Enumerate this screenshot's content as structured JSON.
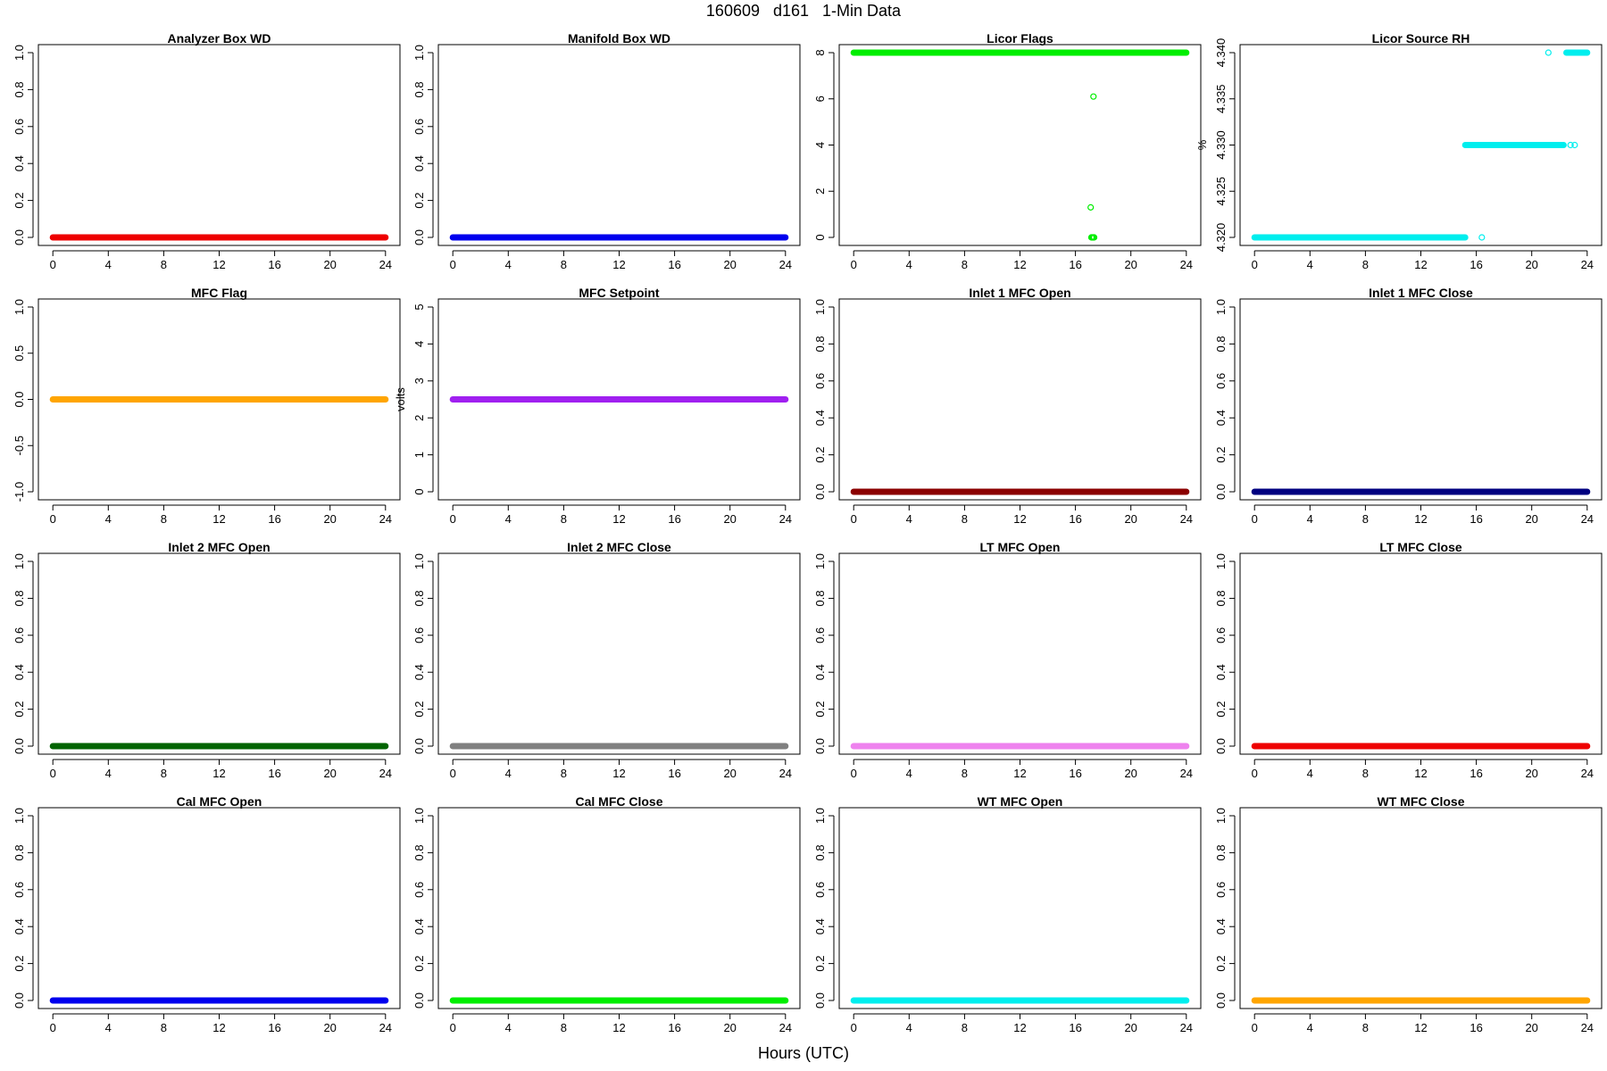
{
  "page": {
    "title": "160609   d161   1-Min Data",
    "xlabel": "Hours (UTC)"
  },
  "chart_data": [
    {
      "type": "scatter",
      "title": "Analyzer Box WD",
      "ylabel": "",
      "color": "#ee0000",
      "xlim": [
        0,
        24
      ],
      "ylim": [
        0,
        1
      ],
      "xticks": [
        0,
        4,
        8,
        12,
        16,
        20,
        24
      ],
      "yticks": [
        "0.0",
        "0.2",
        "0.4",
        "0.6",
        "0.8",
        "1.0"
      ],
      "segments": [
        {
          "x": [
            0,
            24
          ],
          "y": 0
        }
      ],
      "points": []
    },
    {
      "type": "scatter",
      "title": "Manifold Box WD",
      "ylabel": "",
      "color": "#0000ee",
      "xlim": [
        0,
        24
      ],
      "ylim": [
        0,
        1
      ],
      "xticks": [
        0,
        4,
        8,
        12,
        16,
        20,
        24
      ],
      "yticks": [
        "0.0",
        "0.2",
        "0.4",
        "0.6",
        "0.8",
        "1.0"
      ],
      "segments": [
        {
          "x": [
            0,
            24
          ],
          "y": 0
        }
      ],
      "points": []
    },
    {
      "type": "scatter",
      "title": "Licor Flags",
      "ylabel": "",
      "color": "#00ee00",
      "xlim": [
        0,
        24
      ],
      "ylim": [
        0,
        8
      ],
      "xticks": [
        0,
        4,
        8,
        12,
        16,
        20,
        24
      ],
      "yticks": [
        "0",
        "2",
        "4",
        "6",
        "8"
      ],
      "segments": [
        {
          "x": [
            0,
            24
          ],
          "y": 8
        }
      ],
      "points": [
        {
          "x": 17.3,
          "y": 6.1
        },
        {
          "x": 17.1,
          "y": 1.3
        },
        {
          "x": 17.15,
          "y": 0
        },
        {
          "x": 17.2,
          "y": 0
        },
        {
          "x": 17.25,
          "y": 0
        },
        {
          "x": 17.3,
          "y": 0
        },
        {
          "x": 17.35,
          "y": 0
        }
      ]
    },
    {
      "type": "scatter",
      "title": "Licor Source RH",
      "ylabel": "%",
      "color": "#00eeee",
      "xlim": [
        0,
        24
      ],
      "ylim": [
        4.32,
        4.34
      ],
      "xticks": [
        0,
        4,
        8,
        12,
        16,
        20,
        24
      ],
      "yticks": [
        "4.320",
        "4.325",
        "4.330",
        "4.335",
        "4.340"
      ],
      "segments": [
        {
          "x": [
            0,
            15.2
          ],
          "y": 4.32
        },
        {
          "x": [
            15.2,
            22.3
          ],
          "y": 4.33
        },
        {
          "x": [
            22.5,
            24
          ],
          "y": 4.34
        }
      ],
      "points": [
        {
          "x": 16.4,
          "y": 4.32
        },
        {
          "x": 21.2,
          "y": 4.34
        },
        {
          "x": 22.8,
          "y": 4.33
        },
        {
          "x": 23.1,
          "y": 4.33
        }
      ]
    },
    {
      "type": "scatter",
      "title": "MFC Flag",
      "ylabel": "",
      "color": "#ffa500",
      "xlim": [
        0,
        24
      ],
      "ylim": [
        -1,
        1
      ],
      "xticks": [
        0,
        4,
        8,
        12,
        16,
        20,
        24
      ],
      "yticks": [
        "-1.0",
        "-0.5",
        "0.0",
        "0.5",
        "1.0"
      ],
      "segments": [
        {
          "x": [
            0,
            24
          ],
          "y": 0
        }
      ],
      "points": []
    },
    {
      "type": "scatter",
      "title": "MFC Setpoint",
      "ylabel": "volts",
      "color": "#a020f0",
      "xlim": [
        0,
        24
      ],
      "ylim": [
        0,
        5
      ],
      "xticks": [
        0,
        4,
        8,
        12,
        16,
        20,
        24
      ],
      "yticks": [
        "0",
        "1",
        "2",
        "3",
        "4",
        "5"
      ],
      "segments": [
        {
          "x": [
            0,
            24
          ],
          "y": 2.5
        }
      ],
      "points": []
    },
    {
      "type": "scatter",
      "title": "Inlet 1 MFC Open",
      "ylabel": "",
      "color": "#8b0000",
      "xlim": [
        0,
        24
      ],
      "ylim": [
        0,
        1
      ],
      "xticks": [
        0,
        4,
        8,
        12,
        16,
        20,
        24
      ],
      "yticks": [
        "0.0",
        "0.2",
        "0.4",
        "0.6",
        "0.8",
        "1.0"
      ],
      "segments": [
        {
          "x": [
            0,
            24
          ],
          "y": 0
        }
      ],
      "points": []
    },
    {
      "type": "scatter",
      "title": "Inlet 1 MFC Close",
      "ylabel": "",
      "color": "#000080",
      "xlim": [
        0,
        24
      ],
      "ylim": [
        0,
        1
      ],
      "xticks": [
        0,
        4,
        8,
        12,
        16,
        20,
        24
      ],
      "yticks": [
        "0.0",
        "0.2",
        "0.4",
        "0.6",
        "0.8",
        "1.0"
      ],
      "segments": [
        {
          "x": [
            0,
            24
          ],
          "y": 0
        }
      ],
      "points": []
    },
    {
      "type": "scatter",
      "title": "Inlet 2 MFC Open",
      "ylabel": "",
      "color": "#006400",
      "xlim": [
        0,
        24
      ],
      "ylim": [
        0,
        1
      ],
      "xticks": [
        0,
        4,
        8,
        12,
        16,
        20,
        24
      ],
      "yticks": [
        "0.0",
        "0.2",
        "0.4",
        "0.6",
        "0.8",
        "1.0"
      ],
      "segments": [
        {
          "x": [
            0,
            24
          ],
          "y": 0
        }
      ],
      "points": []
    },
    {
      "type": "scatter",
      "title": "Inlet 2 MFC Close",
      "ylabel": "",
      "color": "#808080",
      "xlim": [
        0,
        24
      ],
      "ylim": [
        0,
        1
      ],
      "xticks": [
        0,
        4,
        8,
        12,
        16,
        20,
        24
      ],
      "yticks": [
        "0.0",
        "0.2",
        "0.4",
        "0.6",
        "0.8",
        "1.0"
      ],
      "segments": [
        {
          "x": [
            0,
            24
          ],
          "y": 0
        }
      ],
      "points": []
    },
    {
      "type": "scatter",
      "title": "LT MFC Open",
      "ylabel": "",
      "color": "#ee82ee",
      "xlim": [
        0,
        24
      ],
      "ylim": [
        0,
        1
      ],
      "xticks": [
        0,
        4,
        8,
        12,
        16,
        20,
        24
      ],
      "yticks": [
        "0.0",
        "0.2",
        "0.4",
        "0.6",
        "0.8",
        "1.0"
      ],
      "segments": [
        {
          "x": [
            0,
            24
          ],
          "y": 0
        }
      ],
      "points": []
    },
    {
      "type": "scatter",
      "title": "LT MFC Close",
      "ylabel": "",
      "color": "#ee0000",
      "xlim": [
        0,
        24
      ],
      "ylim": [
        0,
        1
      ],
      "xticks": [
        0,
        4,
        8,
        12,
        16,
        20,
        24
      ],
      "yticks": [
        "0.0",
        "0.2",
        "0.4",
        "0.6",
        "0.8",
        "1.0"
      ],
      "segments": [
        {
          "x": [
            0,
            24
          ],
          "y": 0
        }
      ],
      "points": []
    },
    {
      "type": "scatter",
      "title": "Cal MFC Open",
      "ylabel": "",
      "color": "#0000ee",
      "xlim": [
        0,
        24
      ],
      "ylim": [
        0,
        1
      ],
      "xticks": [
        0,
        4,
        8,
        12,
        16,
        20,
        24
      ],
      "yticks": [
        "0.0",
        "0.2",
        "0.4",
        "0.6",
        "0.8",
        "1.0"
      ],
      "segments": [
        {
          "x": [
            0,
            24
          ],
          "y": 0
        }
      ],
      "points": []
    },
    {
      "type": "scatter",
      "title": "Cal MFC Close",
      "ylabel": "",
      "color": "#00ee00",
      "xlim": [
        0,
        24
      ],
      "ylim": [
        0,
        1
      ],
      "xticks": [
        0,
        4,
        8,
        12,
        16,
        20,
        24
      ],
      "yticks": [
        "0.0",
        "0.2",
        "0.4",
        "0.6",
        "0.8",
        "1.0"
      ],
      "segments": [
        {
          "x": [
            0,
            24
          ],
          "y": 0
        }
      ],
      "points": []
    },
    {
      "type": "scatter",
      "title": "WT MFC Open",
      "ylabel": "",
      "color": "#00eeee",
      "xlim": [
        0,
        24
      ],
      "ylim": [
        0,
        1
      ],
      "xticks": [
        0,
        4,
        8,
        12,
        16,
        20,
        24
      ],
      "yticks": [
        "0.0",
        "0.2",
        "0.4",
        "0.6",
        "0.8",
        "1.0"
      ],
      "segments": [
        {
          "x": [
            0,
            24
          ],
          "y": 0
        }
      ],
      "points": []
    },
    {
      "type": "scatter",
      "title": "WT MFC Close",
      "ylabel": "",
      "color": "#ffa500",
      "xlim": [
        0,
        24
      ],
      "ylim": [
        0,
        1
      ],
      "xticks": [
        0,
        4,
        8,
        12,
        16,
        20,
        24
      ],
      "yticks": [
        "0.0",
        "0.2",
        "0.4",
        "0.6",
        "0.8",
        "1.0"
      ],
      "segments": [
        {
          "x": [
            0,
            24
          ],
          "y": 0
        }
      ],
      "points": []
    }
  ]
}
